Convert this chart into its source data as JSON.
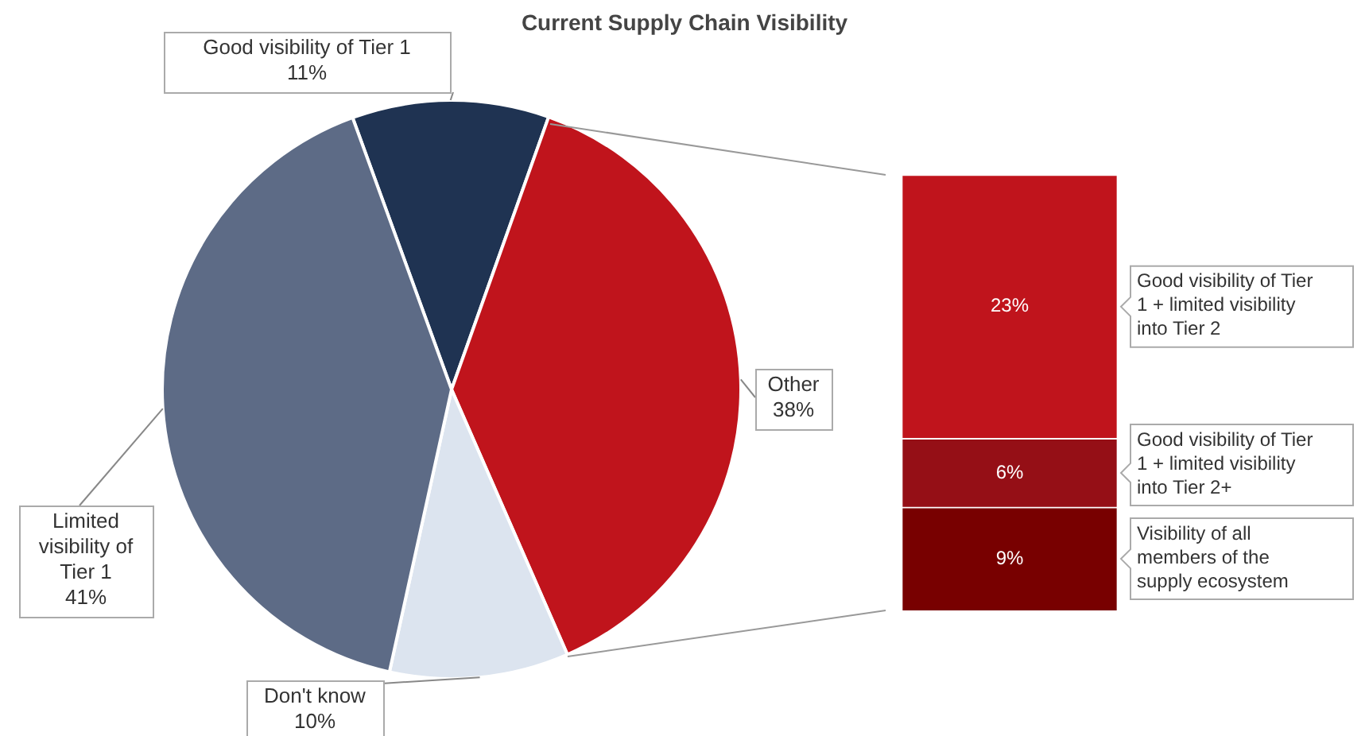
{
  "chart_data": [
    {
      "type": "pie",
      "title": "Current Supply Chain Visibility",
      "categories": [
        "Good visibility of Tier 1",
        "Other",
        "Don't know",
        "Limited visibility of Tier 1"
      ],
      "values": [
        11,
        38,
        10,
        41
      ],
      "colors": [
        "#1f3352",
        "#c0141c",
        "#dce4ef",
        "#5d6b86"
      ],
      "value_labels": [
        "11%",
        "38%",
        "10%",
        "41%"
      ],
      "legend": false
    },
    {
      "type": "bar",
      "categories": [
        null
      ],
      "stacked": true,
      "tick_labels": false,
      "legend": false,
      "series": [
        {
          "name": "Visibility of all members of the supply ecosystem",
          "color": "#780000",
          "values": [
            9
          ],
          "value_labels": [
            "9%"
          ]
        },
        {
          "name": "Good visibility of Tier 1 + limited visibility into Tier 2+",
          "color": "#950f16",
          "values": [
            6
          ],
          "value_labels": [
            "6%"
          ]
        },
        {
          "name": "Good visibility of Tier 1 + limited visibility into Tier 2",
          "color": "#c0141c",
          "values": [
            23
          ],
          "value_labels": [
            "23%"
          ]
        }
      ]
    }
  ]
}
